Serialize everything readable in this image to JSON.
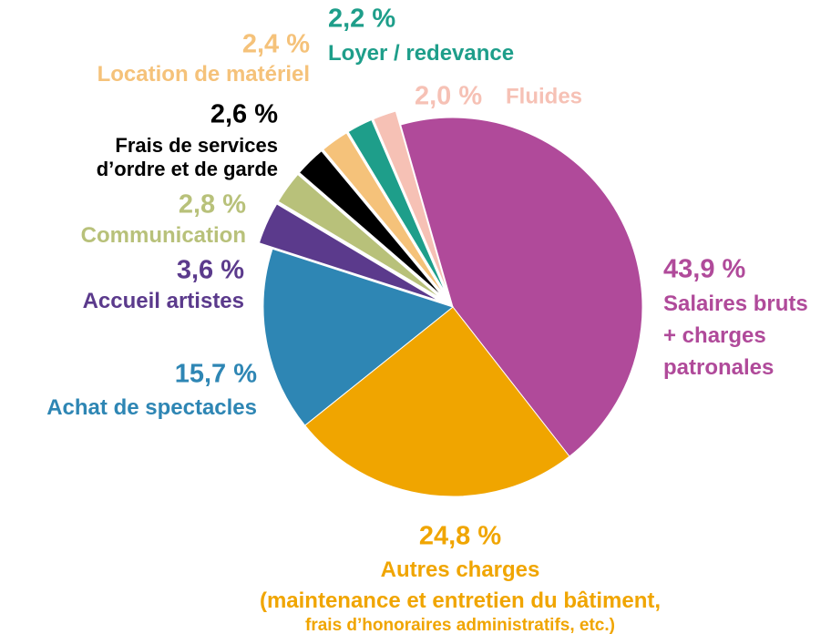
{
  "chart_data": {
    "type": "pie",
    "categories": [
      "Salaires bruts\n+ charges\npatronales",
      "Autres charges\n(maintenance et entretien du bâtiment,\nfrais d’honoraires administratifs, etc.)",
      "Achat de spectacles",
      "Accueil artistes",
      "Communication",
      "Frais de services\nd’ordre et de garde",
      "Location de matériel",
      "Loyer / redevance",
      "Fluides"
    ],
    "values": [
      43.9,
      24.8,
      15.7,
      3.6,
      2.8,
      2.6,
      2.4,
      2.2,
      2.0
    ],
    "value_labels": [
      "43,9 %",
      "24,8 %",
      "15,7 %",
      "3,6 %",
      "2,8 %",
      "2,6 %",
      "2,4 %",
      "2,2 %",
      "2,0 %"
    ],
    "colors": [
      "#b04a9a",
      "#f0a500",
      "#2e86b4",
      "#5b3a8c",
      "#b8c17a",
      "#000000",
      "#f5c27a",
      "#1e9e8a",
      "#f6c1b5"
    ]
  }
}
